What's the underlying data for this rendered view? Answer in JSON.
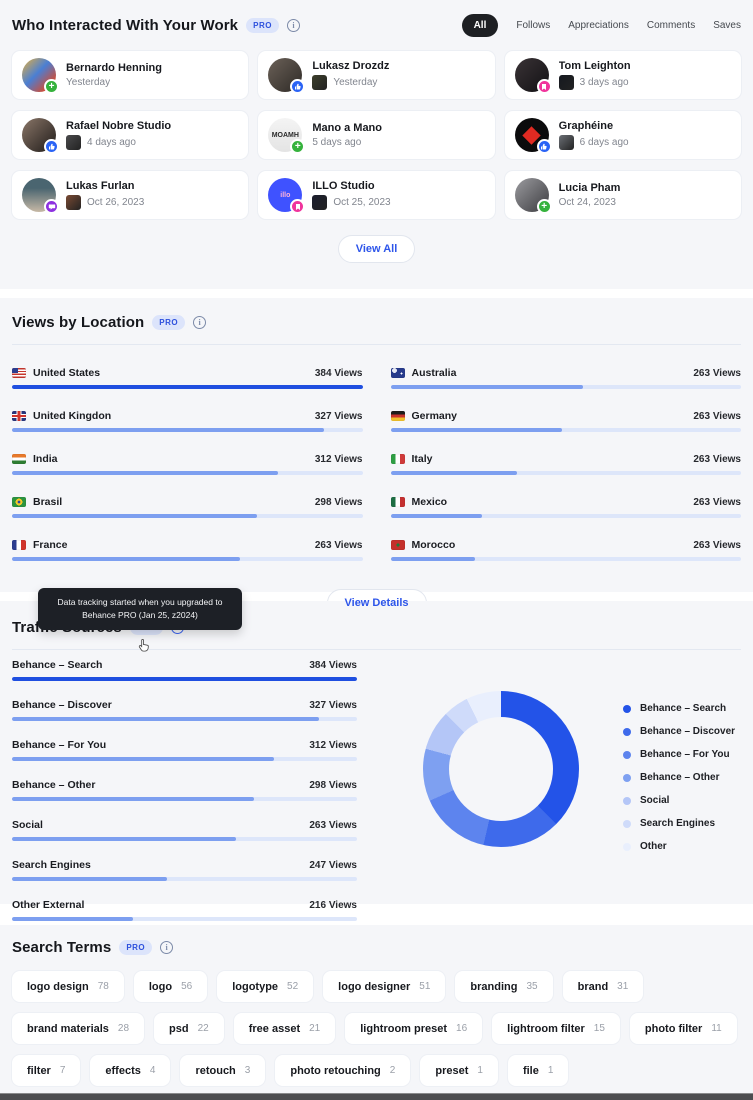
{
  "interactions": {
    "title": "Who Interacted With Your Work",
    "pro_label": "PRO",
    "tabs": [
      {
        "label": "All",
        "active": true
      },
      {
        "label": "Follows",
        "active": false
      },
      {
        "label": "Appreciations",
        "active": false
      },
      {
        "label": "Comments",
        "active": false
      },
      {
        "label": "Saves",
        "active": false
      }
    ],
    "cards": [
      {
        "name": "Bernardo Henning",
        "date": "Yesterday",
        "badge": "follow",
        "avatar": {
          "bg": "linear-gradient(135deg,#e8b13c 0%,#4a7fd4 45%,#c94f3d 80%)"
        }
      },
      {
        "name": "Lukasz Drozdz",
        "date": "Yesterday",
        "badge": "appreciation",
        "thumb_color": "#3c3f2b",
        "avatar": {
          "bg": "linear-gradient(135deg,#6b6158,#2e2a26)"
        }
      },
      {
        "name": "Tom Leighton",
        "date": "3 days ago",
        "badge": "save",
        "thumb_color": "#15181f",
        "avatar": {
          "bg": "linear-gradient(135deg,#3a3336,#121114)"
        }
      },
      {
        "name": "Rafael Nobre Studio",
        "date": "4 days ago",
        "badge": "appreciation",
        "thumb_color": "#4a4a4c",
        "avatar": {
          "bg": "linear-gradient(135deg,#8a7668,#1f1b19)"
        }
      },
      {
        "name": "Mano a Mano",
        "date": "5 days ago",
        "badge": "follow",
        "avatar": {
          "bg": "linear-gradient(180deg,#f4f4f4,#e4e4e4)",
          "text": "MOAMH",
          "text_color": "#2a2a2a"
        }
      },
      {
        "name": "Graphéine",
        "date": "6 days ago",
        "badge": "appreciation",
        "thumb_color": "#6b6f75",
        "avatar": {
          "bg": "#0b0b0c",
          "shape": "diamond"
        }
      },
      {
        "name": "Lukas Furlan",
        "date": "Oct 26, 2023",
        "badge": "comment",
        "thumb_color": "#7a4a33",
        "avatar": {
          "bg": "linear-gradient(180deg,#4a6570 30%,#c7b9a6)"
        }
      },
      {
        "name": "ILLO Studio",
        "date": "Oct 25, 2023",
        "badge": "save",
        "thumb_color": "#1b1e2e",
        "avatar": {
          "bg": "#3f52ff",
          "text": "illo",
          "text_color": "#ffb3d9"
        }
      },
      {
        "name": "Lucia Pham",
        "date": "Oct 24, 2023",
        "badge": "follow",
        "avatar": {
          "bg": "linear-gradient(135deg,#9b9b9f,#3c3c40)"
        }
      }
    ],
    "view_all_label": "View All"
  },
  "locations": {
    "title": "Views by Location",
    "pro_label": "PRO",
    "view_details_label": "View Details",
    "columns": [
      [
        {
          "country": "United States",
          "flag": "us",
          "views_label": "384 Views",
          "pct": 100,
          "highlight": true
        },
        {
          "country": "United Kingdon",
          "flag": "uk",
          "views_label": "327 Views",
          "pct": 89,
          "highlight": false
        },
        {
          "country": "India",
          "flag": "in",
          "views_label": "312 Views",
          "pct": 76,
          "highlight": false
        },
        {
          "country": "Brasil",
          "flag": "br",
          "views_label": "298 Views",
          "pct": 70,
          "highlight": false
        },
        {
          "country": "France",
          "flag": "fr",
          "views_label": "263 Views",
          "pct": 65,
          "highlight": false
        }
      ],
      [
        {
          "country": "Australia",
          "flag": "au",
          "views_label": "263 Views",
          "pct": 55,
          "highlight": false
        },
        {
          "country": "Germany",
          "flag": "de",
          "views_label": "263 Views",
          "pct": 49,
          "highlight": false
        },
        {
          "country": "Italy",
          "flag": "it",
          "views_label": "263 Views",
          "pct": 36,
          "highlight": false
        },
        {
          "country": "Mexico",
          "flag": "mx",
          "views_label": "263 Views",
          "pct": 26,
          "highlight": false
        },
        {
          "country": "Morocco",
          "flag": "ma",
          "views_label": "263 Views",
          "pct": 24,
          "highlight": false
        }
      ]
    ]
  },
  "tooltip": {
    "text": "Data tracking started when you upgraded to Behance PRO (Jan 25, z2024)"
  },
  "traffic": {
    "title": "Traffic Sources",
    "pro_label": "PRO",
    "sources": [
      {
        "label": "Behance – Search",
        "views_label": "384 Views",
        "pct": 100,
        "highlight": true
      },
      {
        "label": "Behance – Discover",
        "views_label": "327 Views",
        "pct": 89,
        "highlight": false
      },
      {
        "label": "Behance – For You",
        "views_label": "312 Views",
        "pct": 76,
        "highlight": false
      },
      {
        "label": "Behance – Other",
        "views_label": "298 Views",
        "pct": 70,
        "highlight": false
      },
      {
        "label": "Social",
        "views_label": "263 Views",
        "pct": 65,
        "highlight": false
      },
      {
        "label": "Search Engines",
        "views_label": "247 Views",
        "pct": 45,
        "highlight": false
      },
      {
        "label": "Other External",
        "views_label": "216 Views",
        "pct": 35,
        "highlight": false
      }
    ],
    "donut_segments": [
      {
        "label": "Behance – Search",
        "color": "#2353e8",
        "start_deg": 0,
        "end_deg": 135
      },
      {
        "label": "Behance – Discover",
        "color": "#3e6aeb",
        "start_deg": 135,
        "end_deg": 193
      },
      {
        "label": "Behance – For You",
        "color": "#5d84ee",
        "start_deg": 193,
        "end_deg": 246
      },
      {
        "label": "Behance – Other",
        "color": "#7ea0f1",
        "start_deg": 246,
        "end_deg": 285
      },
      {
        "label": "Social",
        "color": "#b4c6f7",
        "start_deg": 285,
        "end_deg": 315
      },
      {
        "label": "Search Engines",
        "color": "#cfdbfa",
        "start_deg": 315,
        "end_deg": 334
      },
      {
        "label": "Other",
        "color": "#e9effd",
        "start_deg": 334,
        "end_deg": 360
      }
    ],
    "legend": [
      {
        "label": "Behance – Search",
        "color": "#2353e8"
      },
      {
        "label": "Behance – Discover",
        "color": "#3e6aeb"
      },
      {
        "label": "Behance – For You",
        "color": "#5d84ee"
      },
      {
        "label": "Behance – Other",
        "color": "#7ea0f1"
      },
      {
        "label": "Social",
        "color": "#b4c6f7"
      },
      {
        "label": "Search Engines",
        "color": "#cfdbfa"
      },
      {
        "label": "Other",
        "color": "#e9effd"
      }
    ]
  },
  "search_terms": {
    "title": "Search Terms",
    "pro_label": "PRO",
    "tags": [
      {
        "term": "logo design",
        "count": "78"
      },
      {
        "term": "logo",
        "count": "56"
      },
      {
        "term": "logotype",
        "count": "52"
      },
      {
        "term": "logo designer",
        "count": "51"
      },
      {
        "term": "branding",
        "count": "35"
      },
      {
        "term": "brand",
        "count": "31"
      },
      {
        "term": "brand materials",
        "count": "28"
      },
      {
        "term": "psd",
        "count": "22"
      },
      {
        "term": "free asset",
        "count": "21"
      },
      {
        "term": "lightroom preset",
        "count": "16"
      },
      {
        "term": "lightroom filter",
        "count": "15"
      },
      {
        "term": "photo filter",
        "count": "11"
      },
      {
        "term": "filter",
        "count": "7"
      },
      {
        "term": "effects",
        "count": "4"
      },
      {
        "term": "retouch",
        "count": "3"
      },
      {
        "term": "photo retouching",
        "count": "2"
      },
      {
        "term": "preset",
        "count": "1"
      },
      {
        "term": "file",
        "count": "1"
      }
    ]
  },
  "chart_data": [
    {
      "type": "bar",
      "title": "Views by Location",
      "categories": [
        "United States",
        "United Kingdon",
        "India",
        "Brasil",
        "France",
        "Australia",
        "Germany",
        "Italy",
        "Mexico",
        "Morocco"
      ],
      "values": [
        384,
        327,
        312,
        298,
        263,
        263,
        263,
        263,
        263,
        263
      ],
      "ylabel": "Views",
      "bar_pct_rendered": [
        100,
        89,
        76,
        70,
        65,
        55,
        49,
        36,
        26,
        24
      ]
    },
    {
      "type": "bar",
      "title": "Traffic Sources",
      "categories": [
        "Behance – Search",
        "Behance – Discover",
        "Behance – For You",
        "Behance – Other",
        "Social",
        "Search Engines",
        "Other External"
      ],
      "values": [
        384,
        327,
        312,
        298,
        263,
        247,
        216
      ],
      "ylabel": "Views",
      "bar_pct_rendered": [
        100,
        89,
        76,
        70,
        65,
        45,
        35
      ]
    },
    {
      "type": "pie",
      "title": "Traffic Sources",
      "labels": [
        "Behance – Search",
        "Behance – Discover",
        "Behance – For You",
        "Behance – Other",
        "Social",
        "Search Engines",
        "Other"
      ],
      "values": [
        384,
        327,
        312,
        298,
        263,
        247,
        216
      ],
      "rendered_segment_degrees": [
        135,
        58,
        53,
        39,
        30,
        19,
        26
      ],
      "colors": [
        "#2353e8",
        "#3e6aeb",
        "#5d84ee",
        "#7ea0f1",
        "#b4c6f7",
        "#cfdbfa",
        "#e9effd"
      ],
      "legend_position": "right",
      "donut": true
    }
  ]
}
